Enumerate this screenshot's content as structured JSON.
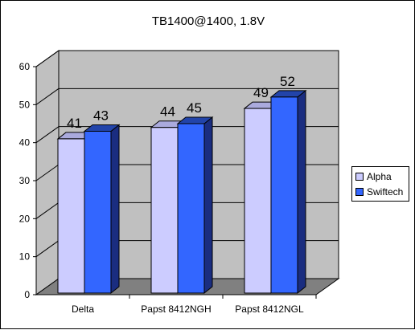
{
  "chart_data": {
    "type": "bar",
    "title": "TB1400@1400, 1.8V",
    "xlabel": "",
    "ylabel": "",
    "categories": [
      "Delta",
      "Papst 8412NGH",
      "Papst 8412NGL"
    ],
    "series": [
      {
        "name": "Alpha",
        "values": [
          41,
          44,
          49
        ],
        "color": "#ccccff"
      },
      {
        "name": "Swiftech",
        "values": [
          43,
          45,
          52
        ],
        "color": "#3366ff"
      }
    ],
    "ylim": [
      0,
      60
    ],
    "yticks": [
      "0",
      "10",
      "20",
      "30",
      "40",
      "50",
      "60"
    ],
    "grid": true,
    "legend_position": "right",
    "wall_color": "#c0c0c0",
    "floor_color": "#808080"
  }
}
